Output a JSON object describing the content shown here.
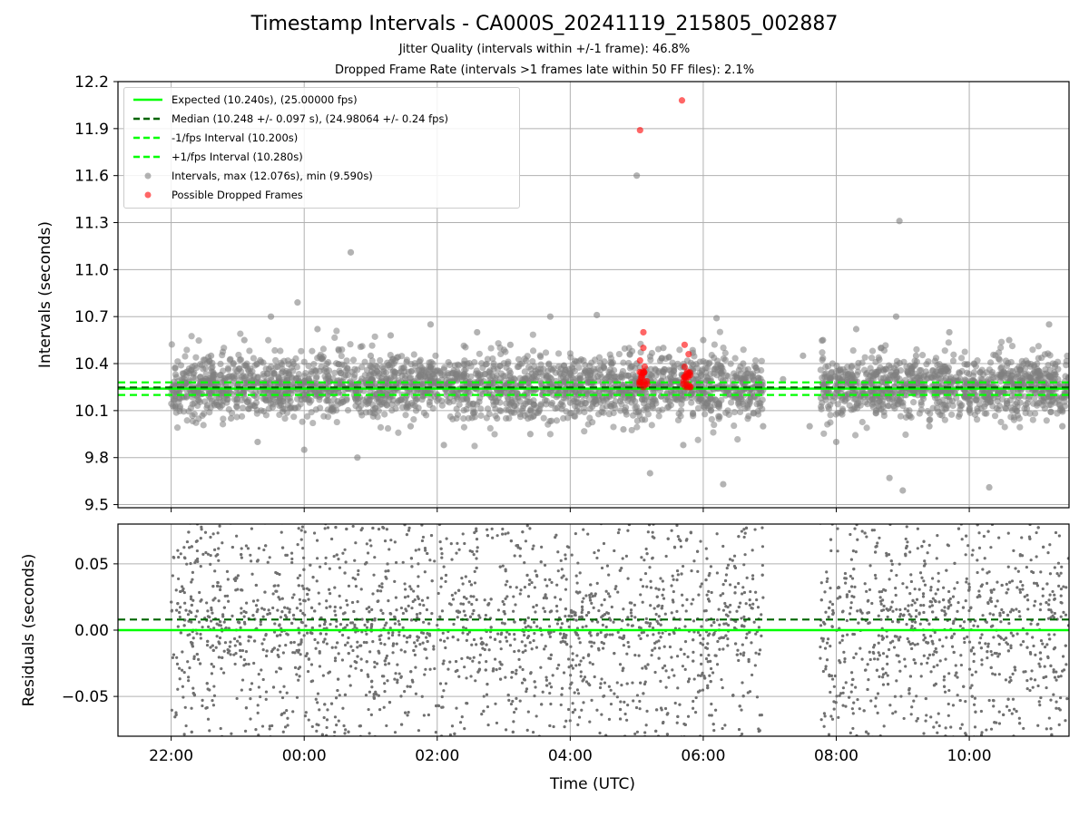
{
  "title": "Timestamp Intervals - CA000S_20241119_215805_002887",
  "subtitle_jitter": "Jitter Quality (intervals within +/-1 frame): 46.8%",
  "subtitle_dropped": "Dropped Frame Rate (intervals >1 frames late within 50 FF files): 2.1%",
  "colors": {
    "expected": "#00ff00",
    "median": "#006400",
    "bounds": "#00ff00",
    "intervals": "#808080",
    "dropped": "#ff0000",
    "grid": "#b0b0b0"
  },
  "chart_data": [
    {
      "type": "scatter",
      "panel": "intervals",
      "ylabel": "Intervals (seconds)",
      "ylim": [
        9.48,
        12.2
      ],
      "yticks": [
        "9.5",
        "9.8",
        "10.1",
        "10.4",
        "10.7",
        "11.0",
        "11.3",
        "11.6",
        "11.9",
        "12.2"
      ],
      "xlim_hours": [
        21.2,
        35.5
      ],
      "grid": true,
      "legend_placement": "upper-left",
      "reference_lines": {
        "expected": 10.24,
        "median": 10.248,
        "lower": 10.2,
        "upper": 10.28
      },
      "legend": [
        {
          "key": "expected",
          "label": "Expected (10.240s), (25.00000 fps)",
          "style": "solid-line"
        },
        {
          "key": "median",
          "label": "Median (10.248 +/- 0.097 s), (24.98064 +/- 0.24 fps)",
          "style": "dashed-line"
        },
        {
          "key": "lower",
          "label": "-1/fps Interval (10.200s)",
          "style": "dashed-line"
        },
        {
          "key": "upper",
          "label": "+1/fps Interval (10.280s)",
          "style": "dashed-line"
        },
        {
          "key": "intervals",
          "label": "Intervals, max (12.076s), min (9.590s)",
          "style": "marker"
        },
        {
          "key": "dropped",
          "label": "Possible Dropped Frames",
          "style": "marker"
        }
      ],
      "series": [
        {
          "name": "Intervals, max (12.076s), min (9.590s)",
          "points": [
            [
              22.0,
              10.24
            ],
            [
              22.2,
              10.26
            ],
            [
              22.4,
              10.22
            ],
            [
              22.6,
              10.45
            ],
            [
              22.9,
              10.05
            ],
            [
              23.1,
              10.55
            ],
            [
              23.3,
              9.9
            ],
            [
              23.5,
              10.7
            ],
            [
              23.7,
              10.3
            ],
            [
              23.9,
              10.79
            ],
            [
              24.0,
              9.85
            ],
            [
              24.2,
              10.62
            ],
            [
              24.4,
              10.1
            ],
            [
              24.7,
              11.11
            ],
            [
              24.8,
              9.8
            ],
            [
              25.0,
              10.45
            ],
            [
              25.3,
              10.58
            ],
            [
              25.6,
              10.0
            ],
            [
              25.9,
              10.65
            ],
            [
              26.1,
              9.88
            ],
            [
              26.3,
              10.35
            ],
            [
              26.6,
              10.6
            ],
            [
              26.9,
              10.05
            ],
            [
              27.1,
              10.52
            ],
            [
              27.4,
              9.95
            ],
            [
              27.7,
              10.7
            ],
            [
              28.0,
              10.15
            ],
            [
              28.4,
              10.71
            ],
            [
              28.8,
              9.98
            ],
            [
              29.0,
              10.4
            ],
            [
              29.2,
              9.7
            ],
            [
              29.0,
              11.6
            ],
            [
              29.4,
              10.5
            ],
            [
              29.7,
              9.88
            ],
            [
              30.0,
              10.55
            ],
            [
              30.2,
              10.69
            ],
            [
              30.3,
              9.63
            ],
            [
              30.6,
              10.4
            ],
            [
              30.9,
              10.0
            ],
            [
              31.2,
              10.3
            ],
            [
              31.5,
              10.45
            ],
            [
              31.6,
              10.0
            ],
            [
              31.8,
              10.55
            ],
            [
              32.0,
              9.9
            ],
            [
              32.3,
              10.62
            ],
            [
              32.6,
              10.1
            ],
            [
              32.8,
              9.67
            ],
            [
              32.9,
              10.7
            ],
            [
              32.95,
              11.31
            ],
            [
              33.0,
              9.59
            ],
            [
              33.2,
              10.45
            ],
            [
              33.4,
              10.0
            ],
            [
              33.7,
              10.6
            ],
            [
              34.0,
              10.1
            ],
            [
              34.3,
              9.61
            ],
            [
              34.6,
              10.55
            ],
            [
              34.9,
              10.3
            ],
            [
              35.2,
              10.65
            ],
            [
              35.4,
              10.0
            ]
          ]
        },
        {
          "name": "Possible Dropped Frames",
          "points": [
            [
              29.05,
              11.89
            ],
            [
              29.1,
              10.6
            ],
            [
              29.1,
              10.5
            ],
            [
              29.05,
              10.42
            ],
            [
              29.1,
              10.35
            ],
            [
              29.05,
              10.28
            ],
            [
              29.1,
              10.25
            ],
            [
              29.08,
              10.31
            ],
            [
              29.12,
              10.38
            ],
            [
              29.68,
              12.08
            ],
            [
              29.72,
              10.52
            ],
            [
              29.78,
              10.46
            ],
            [
              29.72,
              10.38
            ],
            [
              29.75,
              10.32
            ],
            [
              29.7,
              10.27
            ],
            [
              29.8,
              10.25
            ],
            [
              29.74,
              10.29
            ],
            [
              29.78,
              10.34
            ]
          ]
        }
      ]
    },
    {
      "type": "scatter",
      "panel": "residuals",
      "ylabel": "Residuals (seconds)",
      "xlabel": "Time (UTC)",
      "ylim": [
        -0.08,
        0.08
      ],
      "yticks": [
        "−0.05",
        "0.00",
        "0.05"
      ],
      "xticks": [
        "22:00",
        "00:00",
        "02:00",
        "04:00",
        "06:00",
        "08:00",
        "10:00"
      ],
      "xticks_hours": [
        22,
        24,
        26,
        28,
        30,
        32,
        34
      ],
      "xlim_hours": [
        21.2,
        35.5
      ],
      "grid": true,
      "reference_lines": {
        "zero": 0.0,
        "median_offset": 0.008
      },
      "series": [
        {
          "name": "",
          "points": []
        }
      ]
    }
  ]
}
